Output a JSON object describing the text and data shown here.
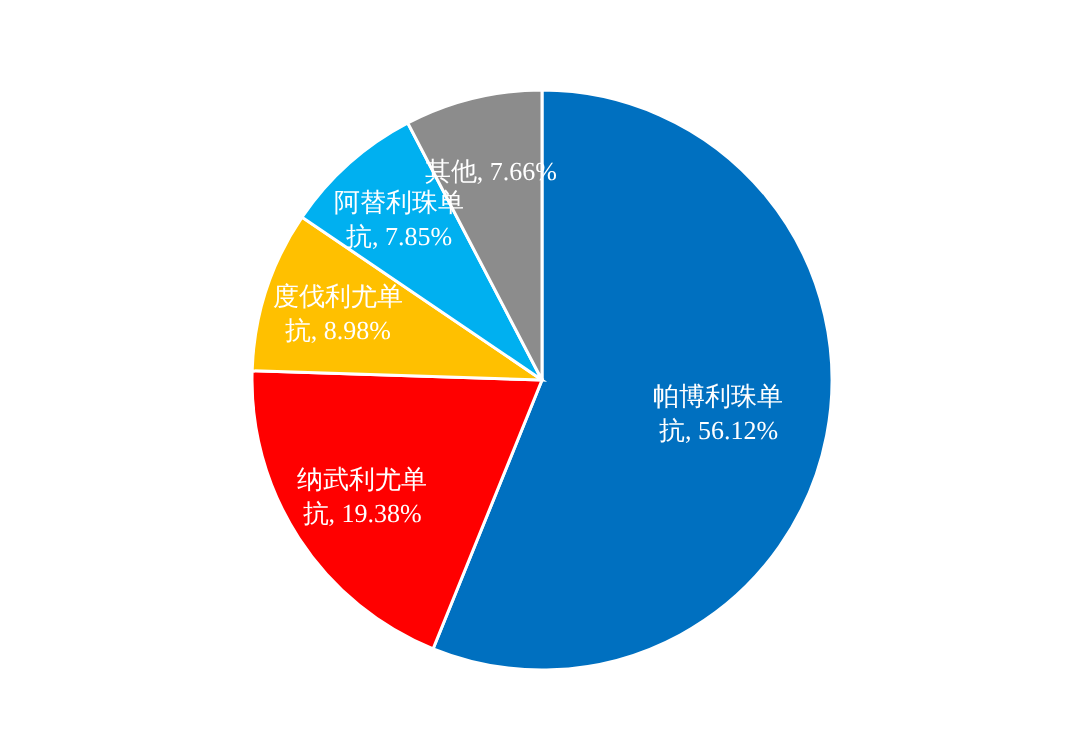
{
  "chart_data": {
    "type": "pie",
    "categories": [
      "帕博利珠单抗",
      "纳武利尤单抗",
      "度伐利尤单抗",
      "阿替利珠单抗",
      "其他"
    ],
    "values": [
      56.12,
      19.38,
      8.98,
      7.85,
      7.66
    ],
    "value_labels": [
      "56.12%",
      "19.38%",
      "8.98%",
      "7.85%",
      "7.66%"
    ],
    "colors": [
      "#0070c0",
      "#ff0000",
      "#ffc000",
      "#00b0f0",
      "#8c8c8c"
    ]
  }
}
